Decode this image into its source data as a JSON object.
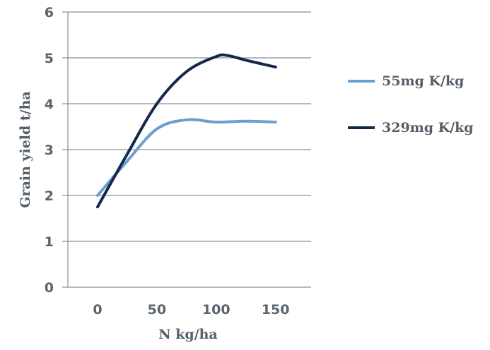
{
  "chart_data": {
    "type": "line",
    "xlabel": "N kg/ha",
    "ylabel": "Grain yield t/ha",
    "xlim": [
      -25,
      180
    ],
    "ylim": [
      0,
      6
    ],
    "x_ticks": [
      "0",
      "50",
      "100",
      "150"
    ],
    "y_ticks": [
      "0",
      "1",
      "2",
      "3",
      "4",
      "5",
      "6"
    ],
    "grid": "horizontal",
    "legend_position": "right",
    "series": [
      {
        "name": "55mg K/kg",
        "color": "#6a9fd0",
        "points": [
          [
            0,
            2.0
          ],
          [
            25,
            2.75
          ],
          [
            50,
            3.45
          ],
          [
            75,
            3.65
          ],
          [
            100,
            3.6
          ],
          [
            125,
            3.62
          ],
          [
            150,
            3.6
          ]
        ]
      },
      {
        "name": "329mg K/kg",
        "color": "#14284a",
        "points": [
          [
            0,
            1.75
          ],
          [
            25,
            2.9
          ],
          [
            50,
            4.0
          ],
          [
            75,
            4.7
          ],
          [
            100,
            5.03
          ],
          [
            110,
            5.05
          ],
          [
            125,
            4.95
          ],
          [
            150,
            4.8
          ]
        ]
      }
    ]
  }
}
